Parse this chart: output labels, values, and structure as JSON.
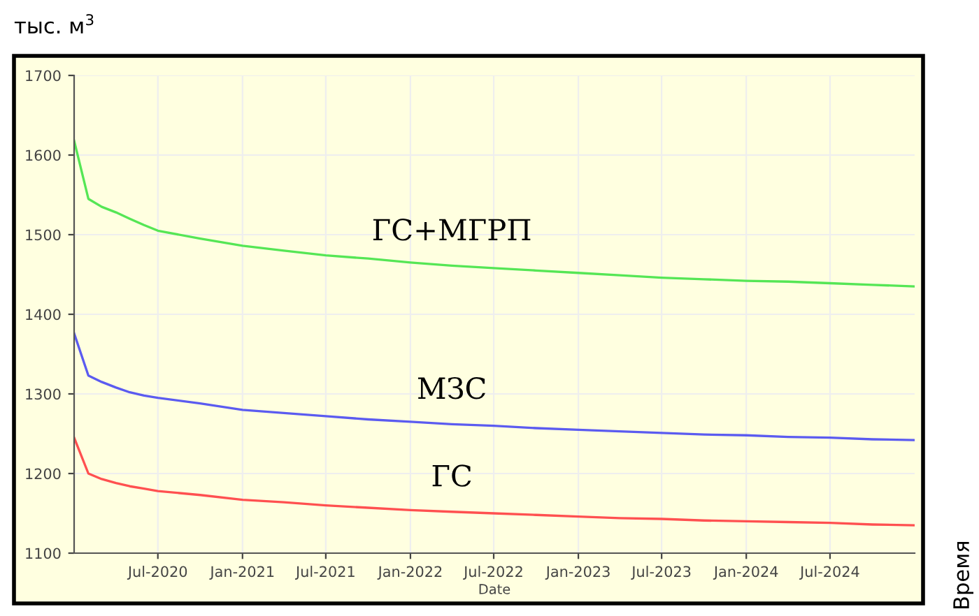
{
  "chart_data": {
    "type": "line",
    "ylabel": "тыс. м$^{3}$",
    "xlabel": "Date",
    "annotations": [
      "Время"
    ],
    "x": [
      "2020-01",
      "2020-02",
      "2020-03",
      "2020-04",
      "2020-05",
      "2020-06",
      "2020-07",
      "2020-10",
      "2021-01",
      "2021-04",
      "2021-07",
      "2021-10",
      "2022-01",
      "2022-04",
      "2022-07",
      "2022-10",
      "2023-01",
      "2023-04",
      "2023-07",
      "2023-10",
      "2024-01",
      "2024-04",
      "2024-07",
      "2024-10",
      "2025-01"
    ],
    "series": [
      {
        "name": "ГС+МГРП",
        "color": "#55e655",
        "values": [
          1618,
          1545,
          1535,
          1528,
          1520,
          1512,
          1505,
          1495,
          1486,
          1480,
          1474,
          1470,
          1465,
          1461,
          1458,
          1455,
          1452,
          1449,
          1446,
          1444,
          1442,
          1441,
          1439,
          1437,
          1435
        ]
      },
      {
        "name": "МЗС",
        "color": "#5b5bf0",
        "values": [
          1376,
          1323,
          1315,
          1308,
          1302,
          1298,
          1295,
          1288,
          1280,
          1276,
          1272,
          1268,
          1265,
          1262,
          1260,
          1257,
          1255,
          1253,
          1251,
          1249,
          1248,
          1246,
          1245,
          1243,
          1242
        ]
      },
      {
        "name": "ГС",
        "color": "#ff5050",
        "values": [
          1245,
          1200,
          1193,
          1188,
          1184,
          1181,
          1178,
          1173,
          1167,
          1164,
          1160,
          1157,
          1154,
          1152,
          1150,
          1148,
          1146,
          1144,
          1143,
          1141,
          1140,
          1139,
          1138,
          1136,
          1135
        ]
      }
    ],
    "xlim": [
      "2020-01",
      "2025-01"
    ],
    "xticks": [
      {
        "value": "2020-07",
        "label": "Jul-2020"
      },
      {
        "value": "2021-01",
        "label": "Jan-2021"
      },
      {
        "value": "2021-07",
        "label": "Jul-2021"
      },
      {
        "value": "2022-01",
        "label": "Jan-2022"
      },
      {
        "value": "2022-07",
        "label": "Jul-2022"
      },
      {
        "value": "2023-01",
        "label": "Jan-2023"
      },
      {
        "value": "2023-07",
        "label": "Jul-2023"
      },
      {
        "value": "2024-01",
        "label": "Jan-2024"
      },
      {
        "value": "2024-07",
        "label": "Jul-2024"
      }
    ],
    "ylim": [
      1100,
      1700
    ],
    "yticks": [
      1100,
      1200,
      1300,
      1400,
      1500,
      1600,
      1700
    ],
    "grid": true,
    "legend": false,
    "marker": "none",
    "line_style": "solid"
  }
}
